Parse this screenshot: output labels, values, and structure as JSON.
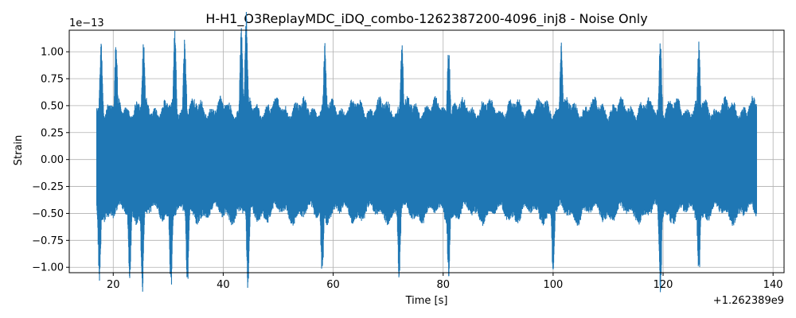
{
  "chart_data": {
    "type": "line",
    "title": "H-H1_O3ReplayMDC_iDQ_combo-1262387200-4096_inj8 - Noise Only",
    "xlabel": "Time [s]",
    "ylabel": "Strain",
    "x_offset_label": "+1.262389e9",
    "y_scale_label": "1e−13",
    "xlim": [
      12,
      142
    ],
    "ylim": [
      -1.05,
      1.2
    ],
    "x_ticks": [
      20,
      40,
      60,
      80,
      100,
      120,
      140
    ],
    "x_tick_labels": [
      "20",
      "40",
      "60",
      "80",
      "100",
      "120",
      "140"
    ],
    "y_ticks": [
      -1.0,
      -0.75,
      -0.5,
      -0.25,
      0.0,
      0.25,
      0.5,
      0.75,
      1.0
    ],
    "y_tick_labels": [
      "−1.00",
      "−0.75",
      "−0.50",
      "−0.25",
      "0.00",
      "0.25",
      "0.50",
      "0.75",
      "1.00"
    ],
    "grid": true,
    "series_color": "#1f77b4",
    "series": [
      {
        "name": "",
        "x_range": [
          17,
          137
        ],
        "y_range": [
          -0.94,
          1.08
        ],
        "peaks": [
          {
            "x": 17.8,
            "y": 0.83
          },
          {
            "x": 20.5,
            "y": 0.8
          },
          {
            "x": 25.5,
            "y": 0.83
          },
          {
            "x": 31.2,
            "y": 0.9
          },
          {
            "x": 33.0,
            "y": 0.85
          },
          {
            "x": 44.2,
            "y": 1.08
          },
          {
            "x": 43.3,
            "y": 0.93
          },
          {
            "x": 58.5,
            "y": 0.8
          },
          {
            "x": 72.5,
            "y": 0.78
          },
          {
            "x": 81.0,
            "y": 0.75
          },
          {
            "x": 101.5,
            "y": 0.8
          },
          {
            "x": 119.5,
            "y": 0.8
          },
          {
            "x": 126.5,
            "y": 0.8
          }
        ],
        "troughs": [
          {
            "x": 17.5,
            "y": -0.82
          },
          {
            "x": 23.0,
            "y": -0.85
          },
          {
            "x": 25.3,
            "y": -0.94
          },
          {
            "x": 30.5,
            "y": -0.92
          },
          {
            "x": 33.5,
            "y": -0.87
          },
          {
            "x": 44.5,
            "y": -0.93
          },
          {
            "x": 58.0,
            "y": -0.83
          },
          {
            "x": 72.0,
            "y": -0.8
          },
          {
            "x": 81.0,
            "y": -0.8
          },
          {
            "x": 100.0,
            "y": -0.78
          },
          {
            "x": 119.5,
            "y": -0.93
          },
          {
            "x": 126.5,
            "y": -0.83
          }
        ],
        "typical_upper": 0.5,
        "typical_lower": -0.52
      }
    ]
  }
}
